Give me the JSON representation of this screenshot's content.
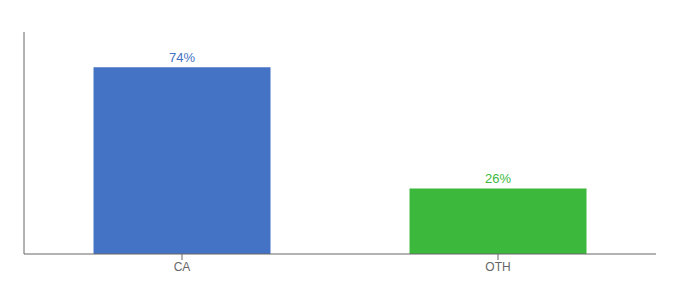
{
  "chart_data": {
    "type": "bar",
    "categories": [
      "CA",
      "OTH"
    ],
    "values": [
      74,
      26
    ],
    "colors": [
      "#4472c4",
      "#3cb83c"
    ],
    "ylim": [
      0,
      88
    ],
    "data_labels": true,
    "value_labels": [
      "74%",
      "26%"
    ],
    "tick_labels": "x",
    "grid": false
  }
}
